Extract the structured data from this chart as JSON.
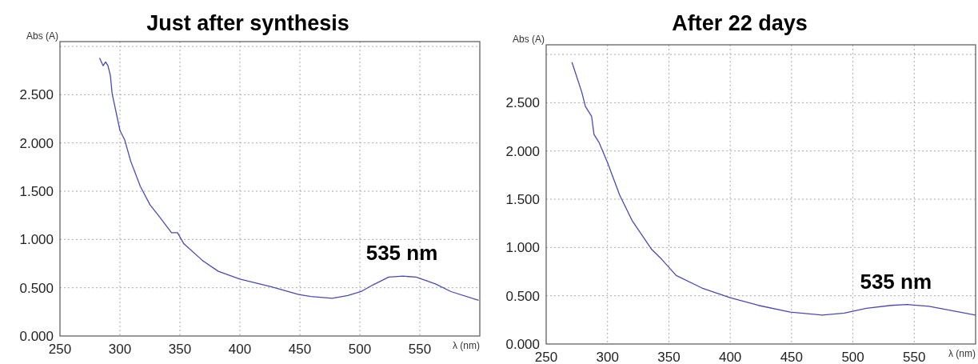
{
  "chart_data": [
    {
      "type": "line",
      "title": "Just after synthesis",
      "xlabel": "λ (nm)",
      "ylabel": "Abs (A)",
      "xlim": [
        250,
        600
      ],
      "xticks": [
        250,
        300,
        350,
        400,
        450,
        500,
        550
      ],
      "ylim": [
        0,
        3.05
      ],
      "yticks": [
        {
          "value": 0,
          "label": "0.000"
        },
        {
          "value": 0.5,
          "label": "0.500"
        },
        {
          "value": 1,
          "label": "1.000"
        },
        {
          "value": 1.5,
          "label": "1.500"
        },
        {
          "value": 2,
          "label": "2.000"
        },
        {
          "value": 2.5,
          "label": "2.500"
        },
        {
          "value": 3,
          "label": null
        }
      ],
      "grid": true,
      "line_style": "solid",
      "annotations": [
        {
          "text": "535 nm",
          "x": 535,
          "y": 0.62
        }
      ],
      "series": [
        {
          "color": "#4a4ab4",
          "x": [
            283,
            286,
            288,
            290,
            292,
            293.5,
            300,
            304,
            309,
            317,
            325,
            332,
            343,
            348,
            353,
            369,
            382,
            400,
            426,
            449,
            459,
            477,
            490,
            501,
            511,
            524,
            536,
            547,
            563,
            576,
            599
          ],
          "values": [
            2.88,
            2.8,
            2.84,
            2.8,
            2.7,
            2.51,
            2.13,
            2.03,
            1.81,
            1.55,
            1.36,
            1.25,
            1.07,
            1.07,
            0.96,
            0.78,
            0.67,
            0.59,
            0.51,
            0.43,
            0.41,
            0.39,
            0.42,
            0.46,
            0.53,
            0.61,
            0.62,
            0.61,
            0.54,
            0.46,
            0.37
          ]
        }
      ]
    },
    {
      "type": "line",
      "title": "After 22 days",
      "xlabel": "λ (nm)",
      "ylabel": "Abs (A)",
      "xlim": [
        250,
        600
      ],
      "xticks": [
        250,
        300,
        350,
        400,
        450,
        500,
        550
      ],
      "ylim": [
        0,
        3.1
      ],
      "yticks": [
        {
          "value": 0,
          "label": "0.000"
        },
        {
          "value": 0.5,
          "label": "0.500"
        },
        {
          "value": 1,
          "label": "1.000"
        },
        {
          "value": 1.5,
          "label": "1.500"
        },
        {
          "value": 2,
          "label": "2.000"
        },
        {
          "value": 2.5,
          "label": "2.500"
        },
        {
          "value": 3,
          "label": null
        }
      ],
      "grid": true,
      "line_style": "solid",
      "annotations": [
        {
          "text": "535 nm",
          "x": 535,
          "y": 0.41
        }
      ],
      "series": [
        {
          "color": "#4a4ab4",
          "x": [
            271,
            279,
            282,
            287,
            289,
            293,
            300,
            310,
            320,
            336,
            344,
            356,
            377,
            400,
            423,
            449,
            475,
            493,
            511,
            531,
            544,
            562,
            600
          ],
          "values": [
            2.92,
            2.61,
            2.46,
            2.36,
            2.17,
            2.09,
            1.88,
            1.54,
            1.28,
            0.98,
            0.88,
            0.71,
            0.58,
            0.48,
            0.4,
            0.33,
            0.3,
            0.32,
            0.37,
            0.4,
            0.41,
            0.39,
            0.3
          ]
        }
      ]
    }
  ]
}
